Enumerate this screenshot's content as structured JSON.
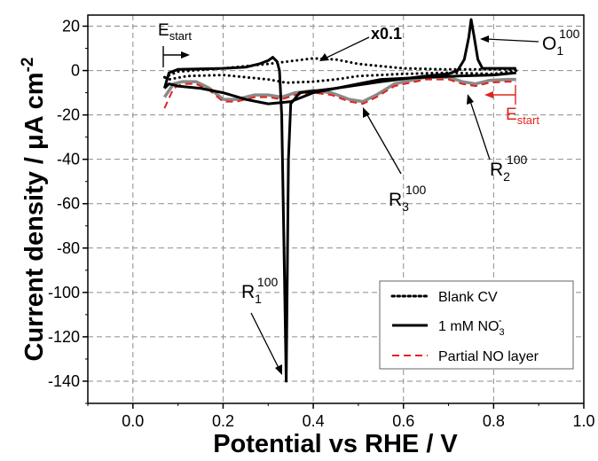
{
  "chart_data": {
    "type": "line",
    "xlabel": "Potential vs RHE / V",
    "ylabel": "Current density / μA cm",
    "ylabel_sup": "-2",
    "xlim": [
      -0.1,
      1.0
    ],
    "ylim": [
      -150,
      25
    ],
    "xticks": [
      "0.0",
      "0.2",
      "0.4",
      "0.6",
      "0.8",
      "1.0"
    ],
    "yticks": [
      "20",
      "0",
      "-20",
      "-40",
      "-60",
      "-80",
      "-100",
      "-120",
      "-140"
    ],
    "xtick_values": [
      0.0,
      0.2,
      0.4,
      0.6,
      0.8,
      1.0
    ],
    "ytick_values": [
      20,
      0,
      -20,
      -40,
      -60,
      -80,
      -100,
      -120,
      -140
    ],
    "grid": true,
    "legend_placement": "bottom-right",
    "legend": {
      "blank": "Blank CV",
      "nitrate_main": "1 mM NO",
      "nitrate_sup": "-",
      "nitrate_sub": "3",
      "partial": "Partial NO layer"
    },
    "annotations": {
      "estart_left_main": "E",
      "estart_left_sub": "start",
      "estart_right_main": "E",
      "estart_right_sub": "start",
      "x01": "x0.1",
      "o1_main": "O",
      "o1_sub": "1",
      "o1_sup": "100",
      "r1_main": "R",
      "r1_sub": "1",
      "r1_sup": "100",
      "r2_main": "R",
      "r2_sub": "2",
      "r2_sup": "100",
      "r3_main": "R",
      "r3_sub": "3",
      "r3_sup": "100"
    },
    "colors": {
      "blank": "#000000",
      "nitrate": "#000000",
      "grey": "#8a8a8a",
      "partial": "#e3231c"
    },
    "series": [
      {
        "key": "blank_upper",
        "style": "dotted",
        "points": [
          [
            0.07,
            -3
          ],
          [
            0.1,
            -0.5
          ],
          [
            0.2,
            1
          ],
          [
            0.3,
            3
          ],
          [
            0.34,
            4
          ],
          [
            0.4,
            5.5
          ],
          [
            0.45,
            5
          ],
          [
            0.5,
            3
          ],
          [
            0.55,
            2
          ],
          [
            0.6,
            1
          ],
          [
            0.7,
            0.5
          ],
          [
            0.8,
            0.5
          ],
          [
            0.85,
            0.5
          ]
        ]
      },
      {
        "key": "blank_lower",
        "style": "dotted",
        "points": [
          [
            0.85,
            0
          ],
          [
            0.8,
            -1.5
          ],
          [
            0.7,
            -1
          ],
          [
            0.6,
            -1.5
          ],
          [
            0.5,
            -2.5
          ],
          [
            0.45,
            -4
          ],
          [
            0.4,
            -5
          ],
          [
            0.34,
            -5.5
          ],
          [
            0.3,
            -4
          ],
          [
            0.2,
            -2
          ],
          [
            0.12,
            -2.5
          ],
          [
            0.08,
            -4
          ],
          [
            0.07,
            -3
          ]
        ]
      },
      {
        "key": "nitrate_anodic",
        "style": "solid",
        "points": [
          [
            0.07,
            -8
          ],
          [
            0.08,
            -1
          ],
          [
            0.1,
            0.5
          ],
          [
            0.2,
            1
          ],
          [
            0.25,
            1.5
          ],
          [
            0.28,
            3
          ],
          [
            0.3,
            4.5
          ],
          [
            0.31,
            6
          ],
          [
            0.32,
            4
          ],
          [
            0.325,
            0
          ],
          [
            0.33,
            -20
          ],
          [
            0.335,
            -80
          ],
          [
            0.34,
            -140
          ],
          [
            0.343,
            -80
          ],
          [
            0.345,
            -40
          ],
          [
            0.35,
            -15
          ],
          [
            0.37,
            -10
          ],
          [
            0.45,
            -8
          ],
          [
            0.55,
            -5
          ],
          [
            0.65,
            -2.5
          ],
          [
            0.7,
            -1.5
          ],
          [
            0.72,
            0
          ],
          [
            0.735,
            5
          ],
          [
            0.745,
            15
          ],
          [
            0.75,
            23
          ],
          [
            0.757,
            15
          ],
          [
            0.765,
            5
          ],
          [
            0.775,
            1
          ],
          [
            0.8,
            1
          ],
          [
            0.85,
            1
          ]
        ]
      },
      {
        "key": "nitrate_cathodic",
        "style": "solid",
        "points": [
          [
            0.85,
            -1
          ],
          [
            0.8,
            -2
          ],
          [
            0.72,
            -2.5
          ],
          [
            0.65,
            -3
          ],
          [
            0.55,
            -4
          ],
          [
            0.5,
            -6
          ],
          [
            0.45,
            -8
          ],
          [
            0.4,
            -10
          ],
          [
            0.35,
            -14
          ],
          [
            0.3,
            -15
          ],
          [
            0.25,
            -13
          ],
          [
            0.2,
            -10
          ],
          [
            0.15,
            -8
          ],
          [
            0.1,
            -7
          ],
          [
            0.08,
            -6
          ],
          [
            0.07,
            -8
          ]
        ]
      },
      {
        "key": "grey_sweep",
        "style": "grey",
        "points": [
          [
            0.07,
            -12
          ],
          [
            0.09,
            -6
          ],
          [
            0.11,
            -5
          ],
          [
            0.14,
            -5
          ],
          [
            0.17,
            -8
          ],
          [
            0.2,
            -13
          ],
          [
            0.23,
            -13
          ],
          [
            0.27,
            -11
          ],
          [
            0.3,
            -11
          ],
          [
            0.33,
            -12
          ],
          [
            0.36,
            -10
          ],
          [
            0.4,
            -9
          ],
          [
            0.44,
            -10
          ],
          [
            0.48,
            -13
          ],
          [
            0.51,
            -14
          ],
          [
            0.54,
            -11
          ],
          [
            0.58,
            -6
          ],
          [
            0.65,
            -3
          ],
          [
            0.7,
            -3
          ],
          [
            0.73,
            -5
          ],
          [
            0.76,
            -6
          ],
          [
            0.79,
            -4.5
          ],
          [
            0.83,
            -4
          ],
          [
            0.85,
            -4
          ]
        ]
      },
      {
        "key": "partial_no_layer",
        "style": "dashed",
        "points": [
          [
            0.07,
            -17
          ],
          [
            0.09,
            -8
          ],
          [
            0.11,
            -6
          ],
          [
            0.14,
            -6
          ],
          [
            0.17,
            -9
          ],
          [
            0.2,
            -14
          ],
          [
            0.23,
            -14
          ],
          [
            0.27,
            -12
          ],
          [
            0.3,
            -12
          ],
          [
            0.33,
            -13
          ],
          [
            0.36,
            -11
          ],
          [
            0.4,
            -10
          ],
          [
            0.44,
            -11
          ],
          [
            0.48,
            -14
          ],
          [
            0.51,
            -15
          ],
          [
            0.54,
            -12
          ],
          [
            0.58,
            -7
          ],
          [
            0.65,
            -4
          ],
          [
            0.7,
            -4
          ],
          [
            0.73,
            -6
          ],
          [
            0.76,
            -7
          ],
          [
            0.79,
            -5.5
          ],
          [
            0.83,
            -5
          ],
          [
            0.85,
            -5
          ]
        ]
      }
    ]
  }
}
